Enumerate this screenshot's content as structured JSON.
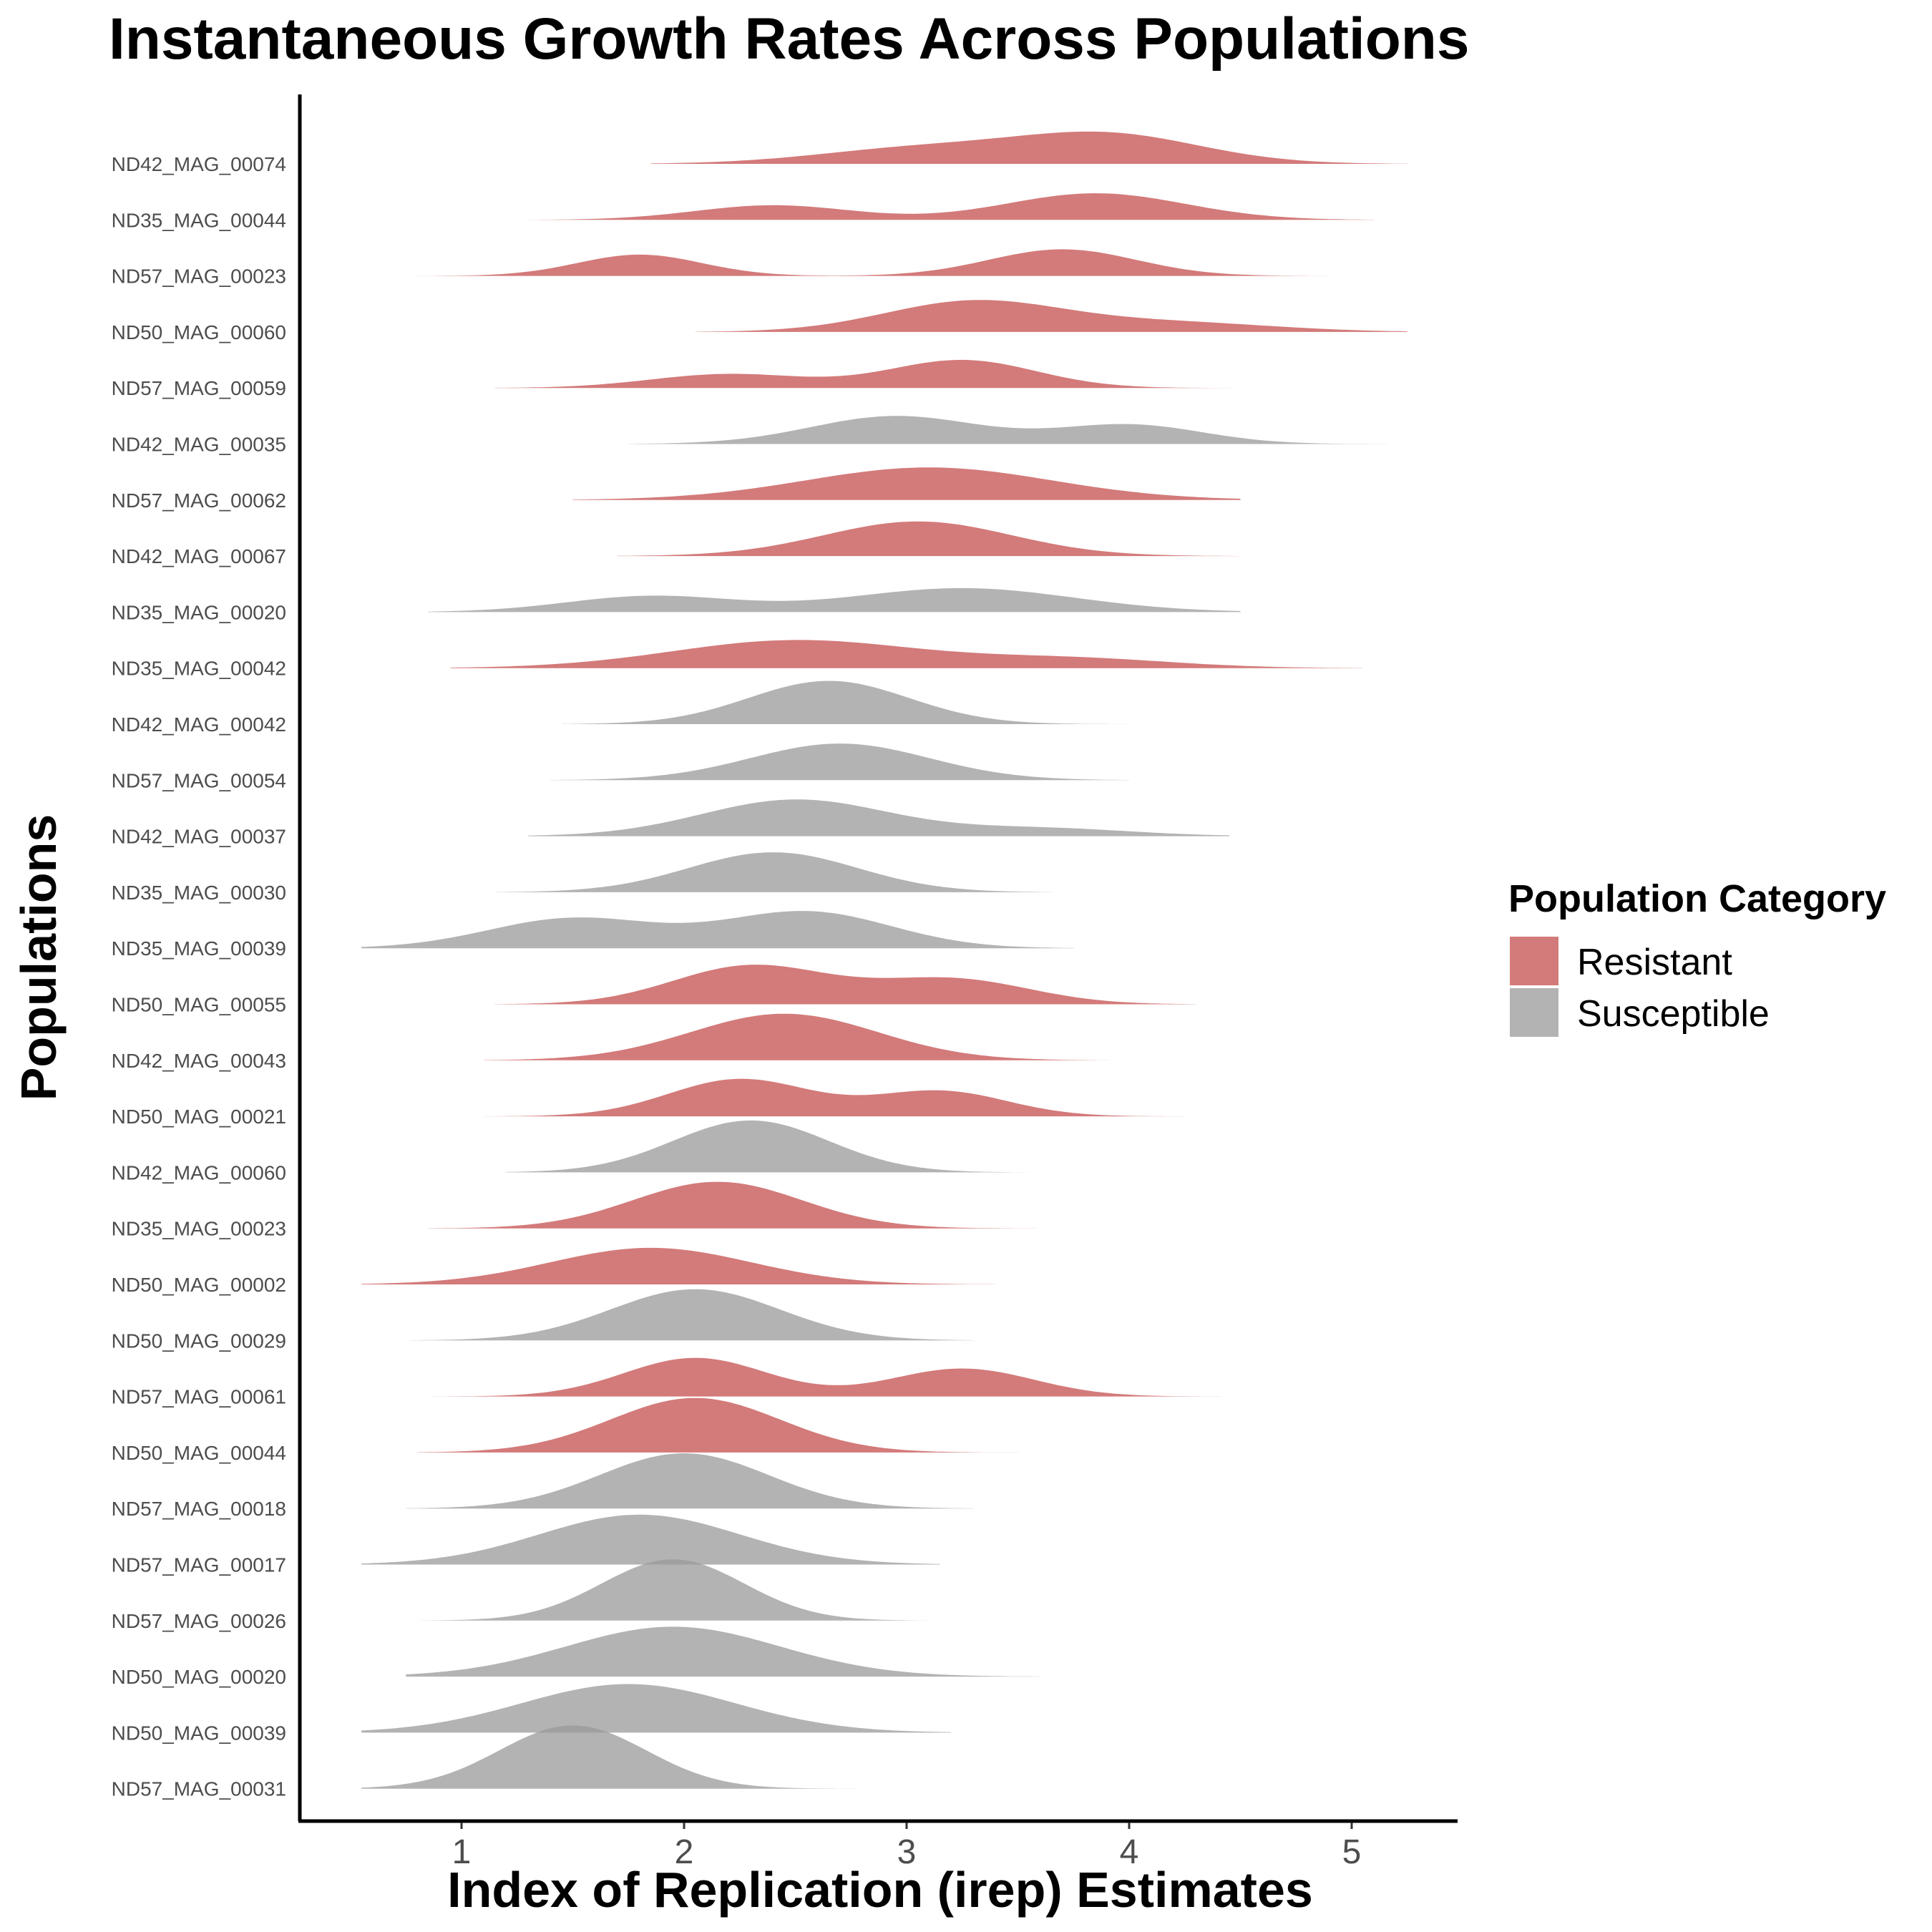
{
  "chart_data": {
    "type": "ridgeline",
    "title": "Instantaneous Growth Rates Across Populations",
    "xlabel": "Index of Replication (irep) Estimates",
    "ylabel": "Populations",
    "xlim": [
      0.3,
      5.5
    ],
    "x_ticks": [
      "1",
      "2",
      "3",
      "4",
      "5"
    ],
    "x_tick_values": [
      1,
      2,
      3,
      4,
      5
    ],
    "grid": false,
    "legend": {
      "title": "Population Category",
      "position": "right",
      "entries": [
        {
          "key": "Resistant",
          "label": "Resistant",
          "color": "#c44e4e"
        },
        {
          "key": "Susceptible",
          "label": "Susceptible",
          "color": "#999999"
        }
      ]
    },
    "fill_opacity": 0.75,
    "series": [
      {
        "name": "ND42_MAG_00074",
        "category": "Resistant",
        "range": [
          1.85,
          5.25
        ],
        "peaks": [
          [
            3.05,
            0.23,
            0.45
          ],
          [
            3.9,
            0.44,
            0.42
          ]
        ]
      },
      {
        "name": "ND35_MAG_00044",
        "category": "Resistant",
        "range": [
          1.2,
          5.1
        ],
        "peaks": [
          [
            2.4,
            0.22,
            0.35
          ],
          [
            3.85,
            0.4,
            0.4
          ]
        ]
      },
      {
        "name": "ND57_MAG_00023",
        "category": "Resistant",
        "range": [
          0.6,
          4.9
        ],
        "peaks": [
          [
            1.8,
            0.32,
            0.28
          ],
          [
            3.7,
            0.4,
            0.33
          ]
        ]
      },
      {
        "name": "ND50_MAG_00060",
        "category": "Resistant",
        "range": [
          2.05,
          5.25
        ],
        "peaks": [
          [
            3.3,
            0.46,
            0.4
          ],
          [
            4.2,
            0.14,
            0.45
          ]
        ]
      },
      {
        "name": "ND57_MAG_00059",
        "category": "Resistant",
        "range": [
          1.15,
          4.7
        ],
        "peaks": [
          [
            2.2,
            0.21,
            0.35
          ],
          [
            3.25,
            0.42,
            0.33
          ]
        ]
      },
      {
        "name": "ND42_MAG_00035",
        "category": "Susceptible",
        "range": [
          1.75,
          5.2
        ],
        "peaks": [
          [
            2.95,
            0.42,
            0.38
          ],
          [
            4.0,
            0.29,
            0.33
          ]
        ]
      },
      {
        "name": "ND57_MAG_00062",
        "category": "Resistant",
        "range": [
          1.5,
          4.5
        ],
        "peaks": [
          [
            3.1,
            0.49,
            0.55
          ]
        ]
      },
      {
        "name": "ND42_MAG_00067",
        "category": "Resistant",
        "range": [
          1.7,
          4.5
        ],
        "peaks": [
          [
            3.05,
            0.52,
            0.42
          ]
        ]
      },
      {
        "name": "ND35_MAG_00020",
        "category": "Susceptible",
        "range": [
          0.85,
          4.5
        ],
        "peaks": [
          [
            1.85,
            0.24,
            0.38
          ],
          [
            3.25,
            0.36,
            0.5
          ]
        ]
      },
      {
        "name": "ND35_MAG_00042",
        "category": "Resistant",
        "range": [
          0.95,
          5.05
        ],
        "peaks": [
          [
            2.5,
            0.42,
            0.55
          ],
          [
            3.75,
            0.14,
            0.45
          ]
        ]
      },
      {
        "name": "ND42_MAG_00042",
        "category": "Susceptible",
        "range": [
          1.45,
          4.0
        ],
        "peaks": [
          [
            2.65,
            0.65,
            0.36
          ]
        ]
      },
      {
        "name": "ND57_MAG_00054",
        "category": "Susceptible",
        "range": [
          1.4,
          4.0
        ],
        "peaks": [
          [
            2.7,
            0.55,
            0.4
          ]
        ]
      },
      {
        "name": "ND42_MAG_00037",
        "category": "Susceptible",
        "range": [
          1.3,
          4.45
        ],
        "peaks": [
          [
            2.5,
            0.55,
            0.42
          ],
          [
            3.6,
            0.12,
            0.4
          ]
        ]
      },
      {
        "name": "ND35_MAG_00030",
        "category": "Susceptible",
        "range": [
          1.15,
          3.65
        ],
        "peaks": [
          [
            2.4,
            0.6,
            0.38
          ]
        ]
      },
      {
        "name": "ND35_MAG_00039",
        "category": "Susceptible",
        "range": [
          0.55,
          3.75
        ],
        "peaks": [
          [
            1.5,
            0.45,
            0.38
          ],
          [
            2.55,
            0.55,
            0.38
          ]
        ]
      },
      {
        "name": "ND50_MAG_00055",
        "category": "Resistant",
        "range": [
          1.15,
          4.3
        ],
        "peaks": [
          [
            2.3,
            0.58,
            0.35
          ],
          [
            3.2,
            0.38,
            0.35
          ]
        ]
      },
      {
        "name": "ND42_MAG_00043",
        "category": "Resistant",
        "range": [
          1.1,
          4.05
        ],
        "peaks": [
          [
            2.45,
            0.7,
            0.42
          ]
        ]
      },
      {
        "name": "ND50_MAG_00021",
        "category": "Resistant",
        "range": [
          1.1,
          4.35
        ],
        "peaks": [
          [
            2.25,
            0.56,
            0.32
          ],
          [
            3.15,
            0.38,
            0.3
          ]
        ]
      },
      {
        "name": "ND42_MAG_00060",
        "category": "Susceptible",
        "range": [
          1.2,
          3.55
        ],
        "peaks": [
          [
            2.3,
            0.78,
            0.35
          ]
        ]
      },
      {
        "name": "ND35_MAG_00023",
        "category": "Resistant",
        "range": [
          0.85,
          3.65
        ],
        "peaks": [
          [
            2.15,
            0.7,
            0.38
          ]
        ]
      },
      {
        "name": "ND50_MAG_00002",
        "category": "Resistant",
        "range": [
          0.55,
          3.4
        ],
        "peaks": [
          [
            1.85,
            0.55,
            0.45
          ]
        ]
      },
      {
        "name": "ND50_MAG_00029",
        "category": "Susceptible",
        "range": [
          0.75,
          3.3
        ],
        "peaks": [
          [
            2.05,
            0.77,
            0.38
          ]
        ]
      },
      {
        "name": "ND57_MAG_00061",
        "category": "Resistant",
        "range": [
          0.85,
          4.45
        ],
        "peaks": [
          [
            2.05,
            0.58,
            0.32
          ],
          [
            3.25,
            0.42,
            0.32
          ]
        ]
      },
      {
        "name": "ND50_MAG_00044",
        "category": "Resistant",
        "range": [
          0.8,
          3.7
        ],
        "peaks": [
          [
            2.05,
            0.82,
            0.38
          ]
        ]
      },
      {
        "name": "ND57_MAG_00018",
        "category": "Susceptible",
        "range": [
          0.75,
          3.3
        ],
        "peaks": [
          [
            2.0,
            0.83,
            0.38
          ]
        ]
      },
      {
        "name": "ND57_MAG_00017",
        "category": "Susceptible",
        "range": [
          0.55,
          3.15
        ],
        "peaks": [
          [
            1.8,
            0.75,
            0.45
          ]
        ]
      },
      {
        "name": "ND57_MAG_00026",
        "category": "Susceptible",
        "range": [
          0.75,
          3.15
        ],
        "peaks": [
          [
            1.95,
            0.92,
            0.32
          ]
        ]
      },
      {
        "name": "ND50_MAG_00020",
        "category": "Susceptible",
        "range": [
          0.75,
          3.6
        ],
        "peaks": [
          [
            1.95,
            0.75,
            0.48
          ]
        ]
      },
      {
        "name": "ND50_MAG_00039",
        "category": "Susceptible",
        "range": [
          0.55,
          3.2
        ],
        "peaks": [
          [
            1.75,
            0.73,
            0.48
          ]
        ]
      },
      {
        "name": "ND57_MAG_00031",
        "category": "Susceptible",
        "range": [
          0.55,
          2.8
        ],
        "peaks": [
          [
            1.5,
            0.95,
            0.33
          ]
        ]
      }
    ]
  }
}
